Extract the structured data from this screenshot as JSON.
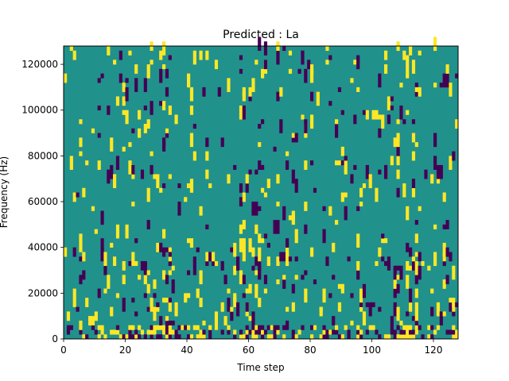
{
  "chart_data": {
    "type": "heatmap",
    "title": "Predicted : La",
    "xlabel": "Time step",
    "ylabel": "Frequency (Hz)",
    "xlim": [
      0,
      128
    ],
    "ylim": [
      0,
      128000
    ],
    "x_ticks": [
      0,
      20,
      40,
      60,
      80,
      100,
      120
    ],
    "y_ticks": [
      0,
      20000,
      40000,
      60000,
      80000,
      100000,
      120000
    ],
    "y_tick_labels": [
      "0",
      "20000",
      "40000",
      "60000",
      "80000",
      "100000",
      "120000"
    ],
    "grid": false,
    "n_time_steps": 128,
    "n_freq_bins": 64,
    "values_range": [
      -1,
      1
    ],
    "colormap": "viridis",
    "colors": {
      "low": "#440154",
      "mid": "#21918c",
      "high": "#fde725"
    },
    "note_density": "sparse pulses; 0 = background"
  }
}
